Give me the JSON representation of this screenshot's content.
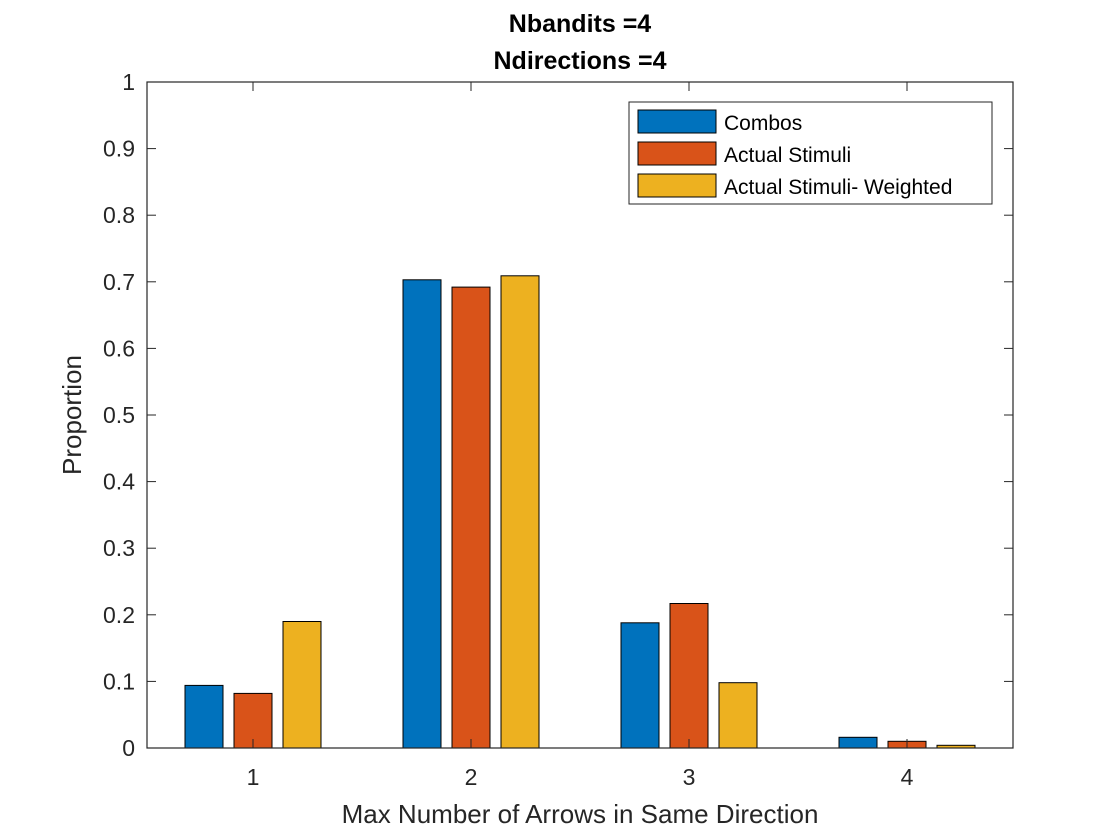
{
  "chart_data": {
    "type": "bar",
    "title": [
      "Nbandits =4",
      "Ndirections =4"
    ],
    "xlabel": "Max Number of Arrows in Same Direction",
    "ylabel": "Proportion",
    "categories": [
      "1",
      "2",
      "3",
      "4"
    ],
    "ylim": [
      0,
      1
    ],
    "yticks": [
      0,
      0.1,
      0.2,
      0.3,
      0.4,
      0.5,
      0.6,
      0.7,
      0.8,
      0.9,
      1
    ],
    "ytick_labels": [
      "0",
      "0.1",
      "0.2",
      "0.3",
      "0.4",
      "0.5",
      "0.6",
      "0.7",
      "0.8",
      "0.9",
      "1"
    ],
    "grid": false,
    "legend_position": "top-right",
    "series": [
      {
        "name": "Combos",
        "color": "#0072BD",
        "values": [
          0.094,
          0.703,
          0.188,
          0.016
        ]
      },
      {
        "name": "Actual Stimuli",
        "color": "#D95319",
        "values": [
          0.082,
          0.692,
          0.217,
          0.01
        ]
      },
      {
        "name": "Actual Stimuli- Weighted",
        "color": "#EDB120",
        "values": [
          0.19,
          0.709,
          0.098,
          0.004
        ]
      }
    ]
  }
}
